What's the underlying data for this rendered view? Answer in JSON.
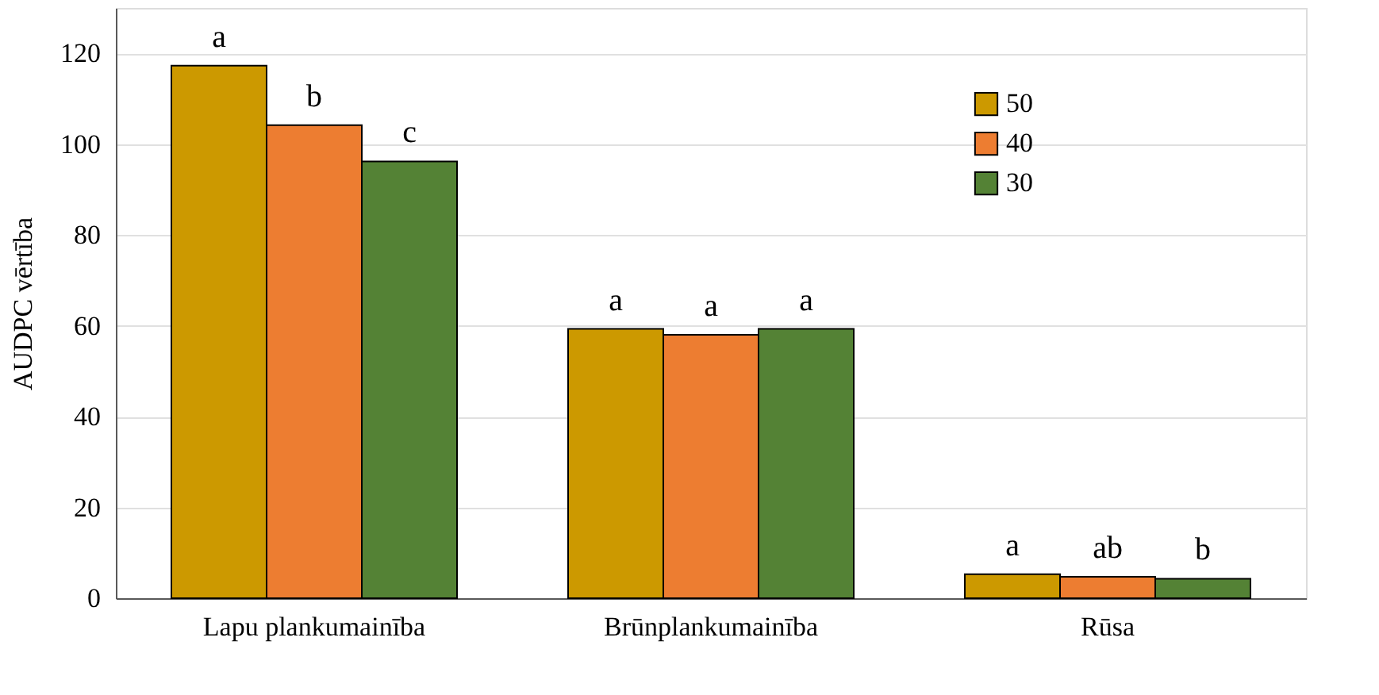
{
  "chart_data": {
    "type": "bar",
    "ylabel": "AUDPC vērtība",
    "categories": [
      "Lapu plankumainība",
      "Brūnplankumainība",
      "Rūsa"
    ],
    "series": [
      {
        "name": "50",
        "color": "#cc9900",
        "values": [
          117.3,
          59.3,
          5.3
        ],
        "value_labels": [
          "a",
          "a",
          "a"
        ]
      },
      {
        "name": "40",
        "color": "#ed7d31",
        "values": [
          104.2,
          58.0,
          4.7
        ],
        "value_labels": [
          "b",
          "a",
          "ab"
        ]
      },
      {
        "name": "30",
        "color": "#548235",
        "values": [
          96.2,
          59.3,
          4.3
        ],
        "value_labels": [
          "c",
          "a",
          "b"
        ]
      }
    ],
    "ylim": [
      0,
      130
    ],
    "yticks": [
      0,
      20,
      40,
      60,
      80,
      100,
      120
    ],
    "grid": "y",
    "legend": "top right"
  }
}
